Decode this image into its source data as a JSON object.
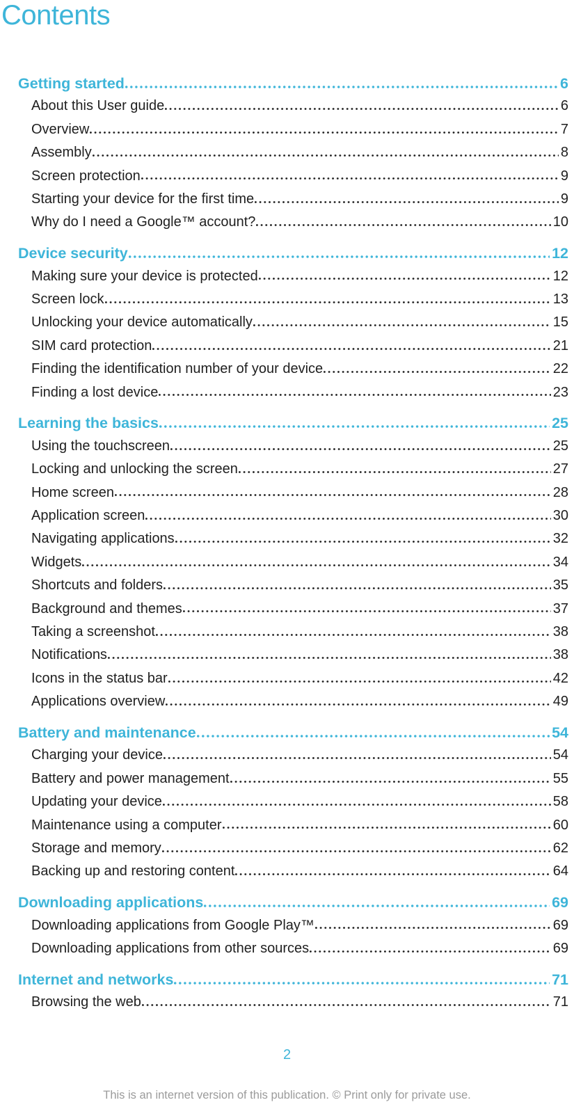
{
  "page": {
    "title": "Contents",
    "page_number": "2",
    "footer_note": "This is an internet version of this publication. © Print only for private use."
  },
  "colors": {
    "accent_cyan": "#3EB5D9",
    "body_text": "#1F1F1F",
    "footer_gray": "#9B9B9B"
  },
  "toc": {
    "sections": [
      {
        "label": "Getting started",
        "page": "6",
        "items": [
          {
            "label": "About this User guide",
            "page": "6"
          },
          {
            "label": "Overview",
            "page": "7"
          },
          {
            "label": "Assembly",
            "page": "8"
          },
          {
            "label": "Screen protection",
            "page": "9"
          },
          {
            "label": "Starting your device for the first time",
            "page": "9"
          },
          {
            "label": "Why do I need a Google™ account?",
            "page": "10"
          }
        ]
      },
      {
        "label": "Device security",
        "page": "12",
        "items": [
          {
            "label": "Making sure your device is protected",
            "page": "12"
          },
          {
            "label": "Screen lock",
            "page": "13"
          },
          {
            "label": "Unlocking your device automatically",
            "page": "15"
          },
          {
            "label": "SIM card protection",
            "page": "21"
          },
          {
            "label": "Finding the identification number of your device",
            "page": "22"
          },
          {
            "label": "Finding a lost device",
            "page": "23"
          }
        ]
      },
      {
        "label": "Learning the basics",
        "page": "25",
        "items": [
          {
            "label": "Using the touchscreen",
            "page": "25"
          },
          {
            "label": "Locking and unlocking the screen",
            "page": "27"
          },
          {
            "label": "Home screen",
            "page": "28"
          },
          {
            "label": "Application screen",
            "page": "30"
          },
          {
            "label": "Navigating applications",
            "page": "32"
          },
          {
            "label": "Widgets",
            "page": "34"
          },
          {
            "label": "Shortcuts and folders",
            "page": "35"
          },
          {
            "label": "Background and themes",
            "page": "37"
          },
          {
            "label": "Taking a screenshot",
            "page": "38"
          },
          {
            "label": "Notifications",
            "page": "38"
          },
          {
            "label": "Icons in the status bar",
            "page": "42"
          },
          {
            "label": "Applications overview",
            "page": "49"
          }
        ]
      },
      {
        "label": "Battery and maintenance",
        "page": "54",
        "items": [
          {
            "label": "Charging your device",
            "page": "54"
          },
          {
            "label": "Battery and power management",
            "page": "55"
          },
          {
            "label": "Updating your device",
            "page": "58"
          },
          {
            "label": "Maintenance using a computer",
            "page": "60"
          },
          {
            "label": "Storage and memory",
            "page": "62"
          },
          {
            "label": "Backing up and restoring content",
            "page": "64"
          }
        ]
      },
      {
        "label": "Downloading applications",
        "page": "69",
        "items": [
          {
            "label": "Downloading applications from Google Play™",
            "page": "69"
          },
          {
            "label": "Downloading applications from other sources",
            "page": "69"
          }
        ]
      },
      {
        "label": "Internet and networks",
        "page": "71",
        "items": [
          {
            "label": "Browsing the web",
            "page": "71"
          }
        ]
      }
    ]
  }
}
